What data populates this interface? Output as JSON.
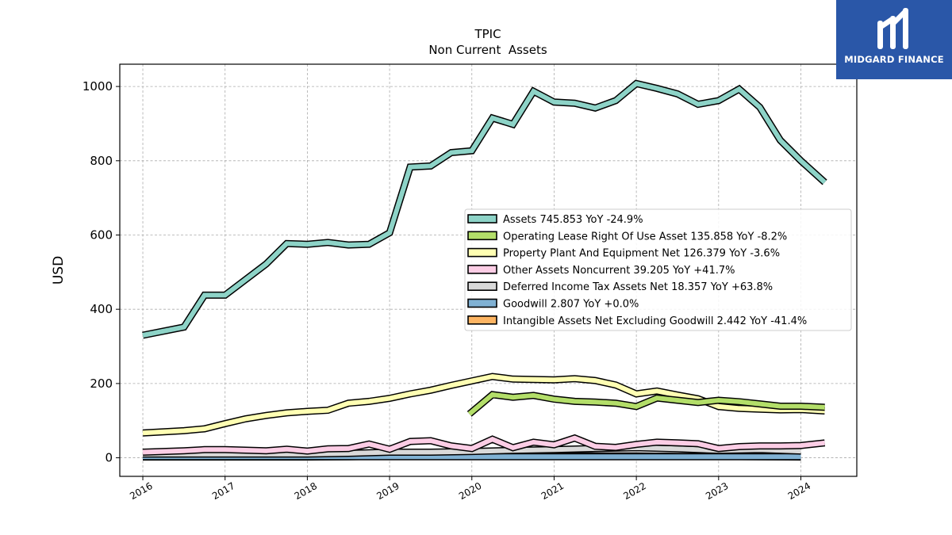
{
  "brand": {
    "name": "MIDGARD FINANCE",
    "bg_color": "#2a57a8",
    "icon": "midgard-m-logo-icon"
  },
  "chart_data": {
    "type": "line",
    "title": "TPIC",
    "subtitle": "Non Current  Assets",
    "xlabel": "",
    "ylabel": "USD",
    "ylim": [
      -50,
      1060
    ],
    "xlim": [
      2015.72,
      2024.68
    ],
    "yticks": [
      0,
      200,
      400,
      600,
      800,
      1000
    ],
    "xticks": [
      2016,
      2017,
      2018,
      2019,
      2020,
      2021,
      2022,
      2023,
      2024
    ],
    "grid": true,
    "legend_position": "right-center",
    "series": [
      {
        "name": "Assets",
        "legend": "Assets  745.853 YoY -24.9%",
        "color": "#8dd3c7",
        "x": [
          2016.0,
          2016.5,
          2016.75,
          2017.0,
          2017.5,
          2017.75,
          2018.0,
          2018.25,
          2018.5,
          2018.75,
          2019.0,
          2019.25,
          2019.5,
          2019.75,
          2020.0,
          2020.25,
          2020.5,
          2020.75,
          2021.0,
          2021.25,
          2021.5,
          2021.75,
          2022.0,
          2022.25,
          2022.5,
          2022.75,
          2023.0,
          2023.25,
          2023.5,
          2023.75,
          2024.0,
          2024.29
        ],
        "values": [
          330,
          352,
          438,
          438,
          522,
          577,
          575,
          580,
          573,
          575,
          606,
          783,
          786,
          822,
          827,
          915,
          898,
          987,
          958,
          955,
          942,
          962,
          1008,
          995,
          980,
          952,
          962,
          993,
          944,
          855,
          800,
          742
        ]
      },
      {
        "name": "Operating Lease Right Of Use Asset",
        "legend": "Operating Lease Right Of Use Asset  135.858 YoY -8.2%",
        "color": "#b3de69",
        "x": [
          2019.97,
          2020.25,
          2020.5,
          2020.75,
          2021.0,
          2021.25,
          2021.5,
          2021.75,
          2022.0,
          2022.25,
          2022.5,
          2022.75,
          2023.0,
          2023.25,
          2023.5,
          2023.75,
          2024.0,
          2024.29
        ],
        "values": [
          118,
          170,
          163,
          168,
          158,
          152,
          150,
          147,
          138,
          161,
          155,
          149,
          155,
          151,
          145,
          139,
          139,
          136
        ]
      },
      {
        "name": "Property Plant And Equipment Net",
        "legend": "Property Plant And Equipment Net  126.379 YoY -3.6%",
        "color": "#ffffb3",
        "x": [
          2016.0,
          2016.5,
          2016.75,
          2017.0,
          2017.25,
          2017.5,
          2017.75,
          2018.0,
          2018.25,
          2018.5,
          2018.75,
          2019.0,
          2019.25,
          2019.5,
          2019.75,
          2020.0,
          2020.25,
          2020.5,
          2020.75,
          2021.0,
          2021.25,
          2021.5,
          2021.75,
          2022.0,
          2022.25,
          2022.5,
          2022.75,
          2023.0,
          2023.25,
          2023.5,
          2023.75,
          2024.0,
          2024.29
        ],
        "values": [
          67,
          73,
          78,
          92,
          105,
          114,
          121,
          125,
          128,
          147,
          152,
          160,
          172,
          182,
          195,
          207,
          219,
          212,
          211,
          210,
          213,
          208,
          196,
          172,
          180,
          169,
          159,
          138,
          133,
          131,
          129,
          130,
          126
        ]
      },
      {
        "name": "Other Assets Noncurrent",
        "legend": "Other Assets Noncurrent  39.205 YoY +41.7%",
        "color": "#fccde5",
        "x": [
          2016.0,
          2016.5,
          2016.75,
          2017.0,
          2017.5,
          2017.75,
          2018.0,
          2018.25,
          2018.5,
          2018.75,
          2019.0,
          2019.25,
          2019.5,
          2019.75,
          2020.0,
          2020.25,
          2020.5,
          2020.75,
          2021.0,
          2021.25,
          2021.5,
          2021.75,
          2022.0,
          2022.25,
          2022.5,
          2022.75,
          2023.0,
          2023.25,
          2023.5,
          2023.75,
          2024.0,
          2024.29
        ],
        "values": [
          15,
          19,
          22,
          22,
          19,
          23,
          18,
          24,
          25,
          37,
          23,
          44,
          46,
          32,
          25,
          50,
          27,
          42,
          35,
          53,
          31,
          28,
          36,
          42,
          40,
          38,
          25,
          30,
          32,
          32,
          33,
          40
        ]
      },
      {
        "name": "Deferred Income Tax Assets Net",
        "legend": "Deferred Income Tax Assets Net  18.357 YoY +63.8%",
        "color": "#d9d9d9",
        "x": [
          2016.0,
          2017.0,
          2018.0,
          2018.5,
          2019.0,
          2019.5,
          2020.0,
          2020.5,
          2021.0,
          2021.5,
          2022.0,
          2022.5,
          2023.0,
          2023.5,
          2024.0
        ],
        "values": [
          10,
          10,
          10,
          12,
          15,
          15,
          17,
          20,
          22,
          25,
          27,
          24,
          20,
          22,
          18
        ]
      },
      {
        "name": "Goodwill",
        "legend": "Goodwill  2.807 YoY +0.0%",
        "color": "#80b1d3",
        "x": [
          2016.0,
          2017.0,
          2018.0,
          2019.0,
          2020.0,
          2021.0,
          2022.0,
          2023.0,
          2024.0
        ],
        "values": [
          3,
          3,
          3,
          3,
          3,
          3,
          3,
          3,
          3
        ]
      },
      {
        "name": "Intangible Assets Net Excluding Goodwill",
        "legend": "Intangible Assets Net Excluding Goodwill  2.442 YoY -41.4%",
        "color": "#fdb462",
        "x": [
          2016.0,
          2016.5,
          2017.0,
          2017.5,
          2018.0,
          2018.5,
          2019.0,
          2019.5,
          2020.0,
          2020.5,
          2021.0,
          2021.5,
          2022.0,
          2022.5,
          2023.0,
          2023.5,
          2024.0
        ],
        "values": [
          2,
          2,
          2,
          2,
          2,
          3,
          5,
          6,
          6,
          6,
          6,
          5,
          5,
          4,
          4,
          3,
          2
        ]
      }
    ]
  }
}
